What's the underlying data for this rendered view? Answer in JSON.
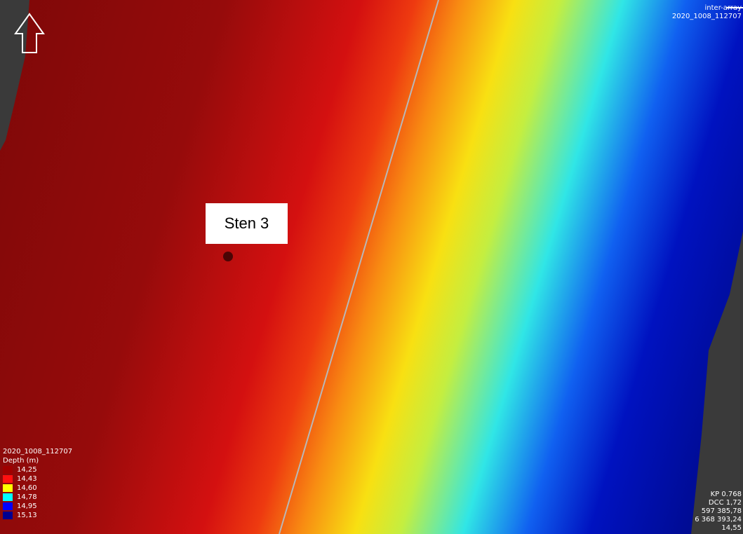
{
  "map": {
    "label": "Sten 3",
    "top_legend": {
      "line_name": "inter-array",
      "survey": "2020_1008_112707"
    },
    "depth_legend": {
      "survey": "2020_1008_112707",
      "title": "Depth (m)",
      "entries": [
        {
          "label": "14,25",
          "color": "#a00000"
        },
        {
          "label": "14,43",
          "color": "#ff1010"
        },
        {
          "label": "14,60",
          "color": "#ffff00"
        },
        {
          "label": "14,78",
          "color": "#00ffff"
        },
        {
          "label": "14,95",
          "color": "#0000ff"
        },
        {
          "label": "15,13",
          "color": "#000090"
        }
      ]
    },
    "info": [
      "KP 0.768",
      "DCC 1,72",
      "597 385,78",
      "6 368 393,24",
      "14,55"
    ]
  }
}
